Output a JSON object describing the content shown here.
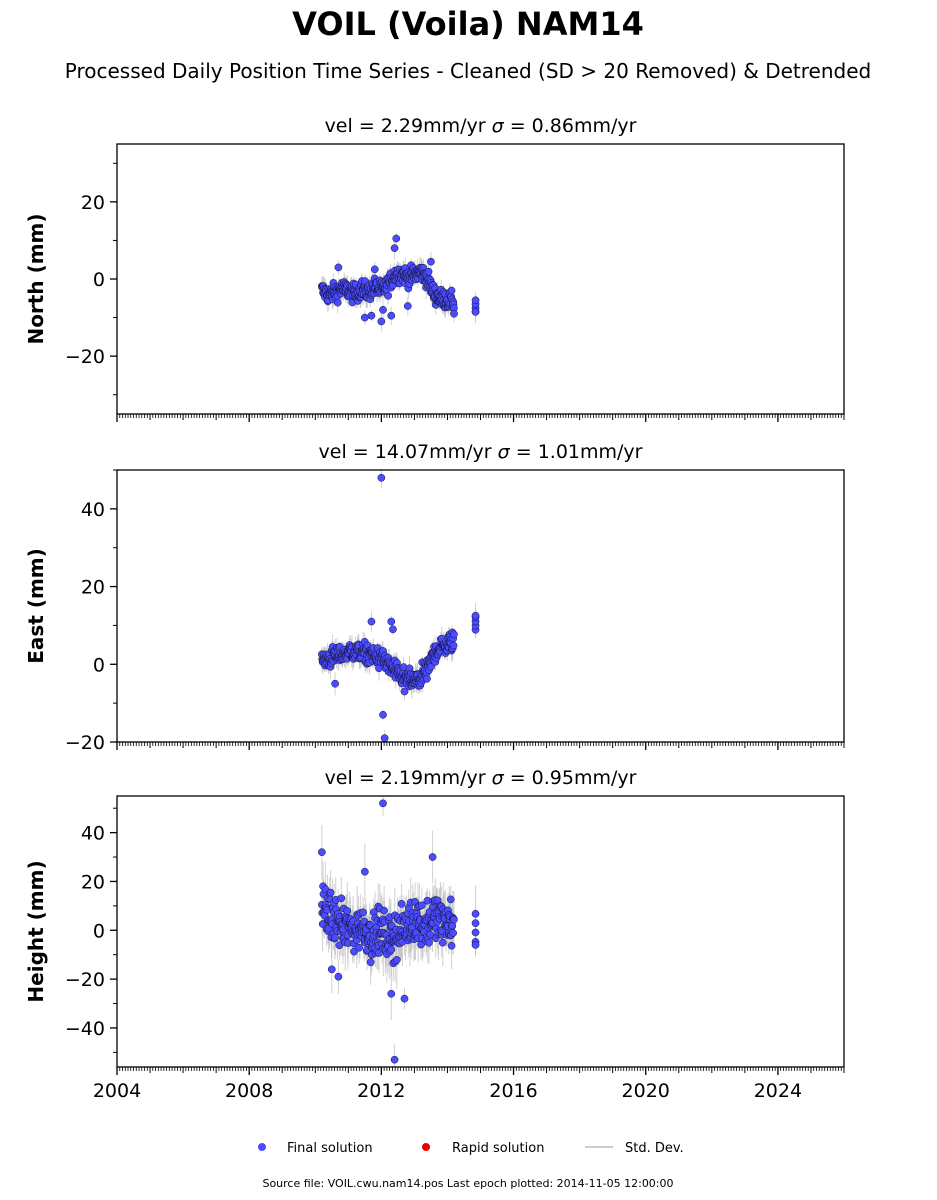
{
  "title": "VOIL (Voila) NAM14",
  "subtitle": "Processed Daily Position Time Series - Cleaned (SD > 20 Removed) & Detrended",
  "footer": "Source file: VOIL.cwu.nam14.pos  Last epoch plotted: 2014-11-05 12:00:00",
  "legend": {
    "items": [
      {
        "label": "Final solution",
        "color": "#4b4bff"
      },
      {
        "label": "Rapid solution",
        "color": "#ee0000"
      },
      {
        "label": "Std. Dev.",
        "color": "#cccccc"
      }
    ]
  },
  "colors": {
    "final": "#4b4bff",
    "final_edge": "#111133",
    "rapid": "#ee0000",
    "stddev": "#bdbdbd"
  },
  "chart_data": [
    {
      "type": "scatter",
      "panel": "north",
      "title_prefix": "vel = 2.29mm/yr",
      "title_sigma": "= 0.86mm/yr",
      "ylabel": "North (mm)",
      "xlim": [
        2004,
        2026
      ],
      "ylim": [
        -35,
        35
      ],
      "yticks": [
        -20,
        0,
        20
      ],
      "ytick_labels": [
        "−20",
        "0",
        "20"
      ],
      "xticks": [
        2004,
        2008,
        2012,
        2016,
        2020,
        2024
      ],
      "show_xtick_labels": false,
      "x": [
        2010.2,
        2010.4,
        2010.6,
        2010.8,
        2011.0,
        2011.2,
        2011.4,
        2011.6,
        2011.8,
        2012.0,
        2012.2,
        2012.4,
        2012.6,
        2012.8,
        2013.0,
        2013.2,
        2013.4,
        2013.6,
        2013.8,
        2014.0,
        2014.2,
        2014.85
      ],
      "y": [
        -3.0,
        -4.0,
        -3.5,
        -2.5,
        -3.0,
        -4.0,
        -2.5,
        -3.5,
        -2.0,
        -3.0,
        -1.5,
        1.0,
        1.5,
        0.5,
        1.0,
        2.0,
        0.0,
        -4.0,
        -5.0,
        -5.5,
        -6.0,
        -7.0
      ],
      "outliers_x": [
        2010.7,
        2011.5,
        2011.7,
        2011.8,
        2012.0,
        2012.05,
        2012.3,
        2012.4,
        2012.45,
        2012.8,
        2013.5,
        2014.2,
        2014.85
      ],
      "outliers_y": [
        3.0,
        -10.0,
        -9.5,
        2.5,
        -11.0,
        -8.0,
        -9.5,
        8.0,
        10.5,
        -7.0,
        4.5,
        -9.0,
        -8.5
      ],
      "spread": 2.2
    },
    {
      "type": "scatter",
      "panel": "east",
      "title_prefix": "vel = 14.07mm/yr",
      "title_sigma": "= 1.01mm/yr",
      "ylabel": "East (mm)",
      "xlim": [
        2004,
        2026
      ],
      "ylim": [
        -20,
        50
      ],
      "yticks": [
        -20,
        0,
        20,
        40
      ],
      "ytick_labels": [
        "−20",
        "0",
        "20",
        "40"
      ],
      "xticks": [
        2004,
        2008,
        2012,
        2016,
        2020,
        2024
      ],
      "show_xtick_labels": false,
      "x": [
        2010.2,
        2010.4,
        2010.6,
        2010.8,
        2011.0,
        2011.2,
        2011.4,
        2011.6,
        2011.8,
        2012.0,
        2012.2,
        2012.4,
        2012.6,
        2012.8,
        2013.0,
        2013.2,
        2013.4,
        2013.6,
        2013.8,
        2014.0,
        2014.2,
        2014.85
      ],
      "y": [
        1.0,
        1.5,
        2.0,
        2.5,
        3.0,
        3.5,
        3.0,
        2.5,
        2.0,
        1.5,
        0.0,
        -2.0,
        -3.0,
        -4.0,
        -4.5,
        -3.5,
        -1.5,
        3.0,
        4.5,
        5.0,
        6.0,
        10.5
      ],
      "outliers_x": [
        2010.6,
        2011.7,
        2012.0,
        2012.05,
        2012.1,
        2012.3,
        2012.35,
        2012.7,
        2014.85
      ],
      "outliers_y": [
        -5.0,
        11.0,
        48.0,
        -13.0,
        -19.0,
        11.0,
        9.0,
        -7.0,
        12.5
      ],
      "spread": 2.4
    },
    {
      "type": "scatter",
      "panel": "height",
      "title_prefix": "vel = 2.19mm/yr",
      "title_sigma": "= 0.95mm/yr",
      "ylabel": "Height (mm)",
      "xlim": [
        2004,
        2026
      ],
      "ylim": [
        -56,
        55
      ],
      "yticks": [
        -40,
        -20,
        0,
        20,
        40
      ],
      "ytick_labels": [
        "−40",
        "−20",
        "0",
        "20",
        "40"
      ],
      "xticks": [
        2004,
        2008,
        2012,
        2016,
        2020,
        2024
      ],
      "show_xtick_labels": true,
      "xtick_labels": [
        "2004",
        "2008",
        "2012",
        "2016",
        "2020",
        "2024"
      ],
      "x": [
        2010.2,
        2010.4,
        2010.6,
        2010.8,
        2011.0,
        2011.2,
        2011.4,
        2011.6,
        2011.8,
        2012.0,
        2012.2,
        2012.4,
        2012.6,
        2012.8,
        2013.0,
        2013.2,
        2013.4,
        2013.6,
        2013.8,
        2014.0,
        2014.2,
        2014.85
      ],
      "y": [
        10.0,
        6.0,
        4.0,
        2.0,
        1.0,
        0.0,
        2.0,
        -1.0,
        -3.0,
        0.0,
        -4.0,
        -2.0,
        -1.0,
        2.0,
        5.0,
        3.0,
        2.0,
        6.0,
        3.0,
        4.0,
        2.0,
        1.0
      ],
      "outliers_x": [
        2010.2,
        2010.5,
        2010.7,
        2011.5,
        2012.05,
        2012.3,
        2012.4,
        2012.7,
        2013.55,
        2014.85
      ],
      "outliers_y": [
        32.0,
        -16.0,
        -19.0,
        24.0,
        52.0,
        -26.0,
        -53.0,
        -28.0,
        30.0,
        -6.0
      ],
      "spread": 8.5
    }
  ]
}
